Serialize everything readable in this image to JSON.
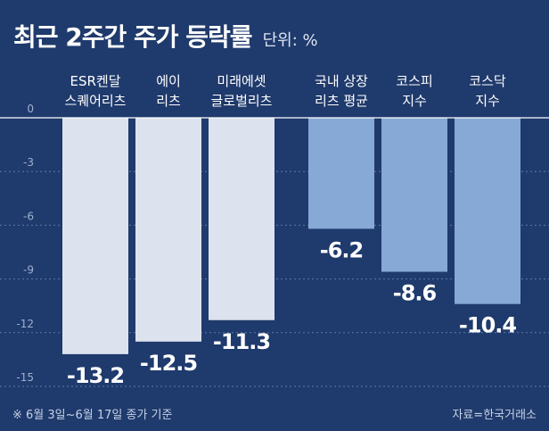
{
  "header": {
    "title": "최근 2주간 주가 등락률",
    "unit": "단위: %"
  },
  "footer": {
    "note": "※ 6월 3일~6월 17일 종가 기준",
    "source": "자료=한국거래소"
  },
  "colors": {
    "background": "#1f3a6c",
    "reit_bar": "#dde3ee",
    "index_bar": "#86a9d6",
    "grid": "#5f7bab"
  },
  "chart_data": {
    "type": "bar",
    "categories": [
      [
        "ESR켄달",
        "스퀘어리츠"
      ],
      [
        "에이",
        "리츠"
      ],
      [
        "미래에셋",
        "글로벌리츠"
      ],
      [
        "국내 상장",
        "리츠 평균"
      ],
      [
        "코스피",
        "지수"
      ],
      [
        "코스닥",
        "지수"
      ]
    ],
    "values": [
      -13.2,
      -12.5,
      -11.3,
      -6.2,
      -8.6,
      -10.4
    ],
    "value_labels": [
      "-13.2",
      "-12.5",
      "-11.3",
      "-6.2",
      "-8.6",
      "-10.4"
    ],
    "bar_groups": [
      "reit",
      "reit",
      "reit",
      "index",
      "index",
      "index"
    ],
    "ylim": [
      -15,
      0
    ],
    "yticks": [
      0,
      -3,
      -6,
      -9,
      -12,
      -15
    ],
    "grid": true,
    "xlabel": "",
    "ylabel": ""
  }
}
